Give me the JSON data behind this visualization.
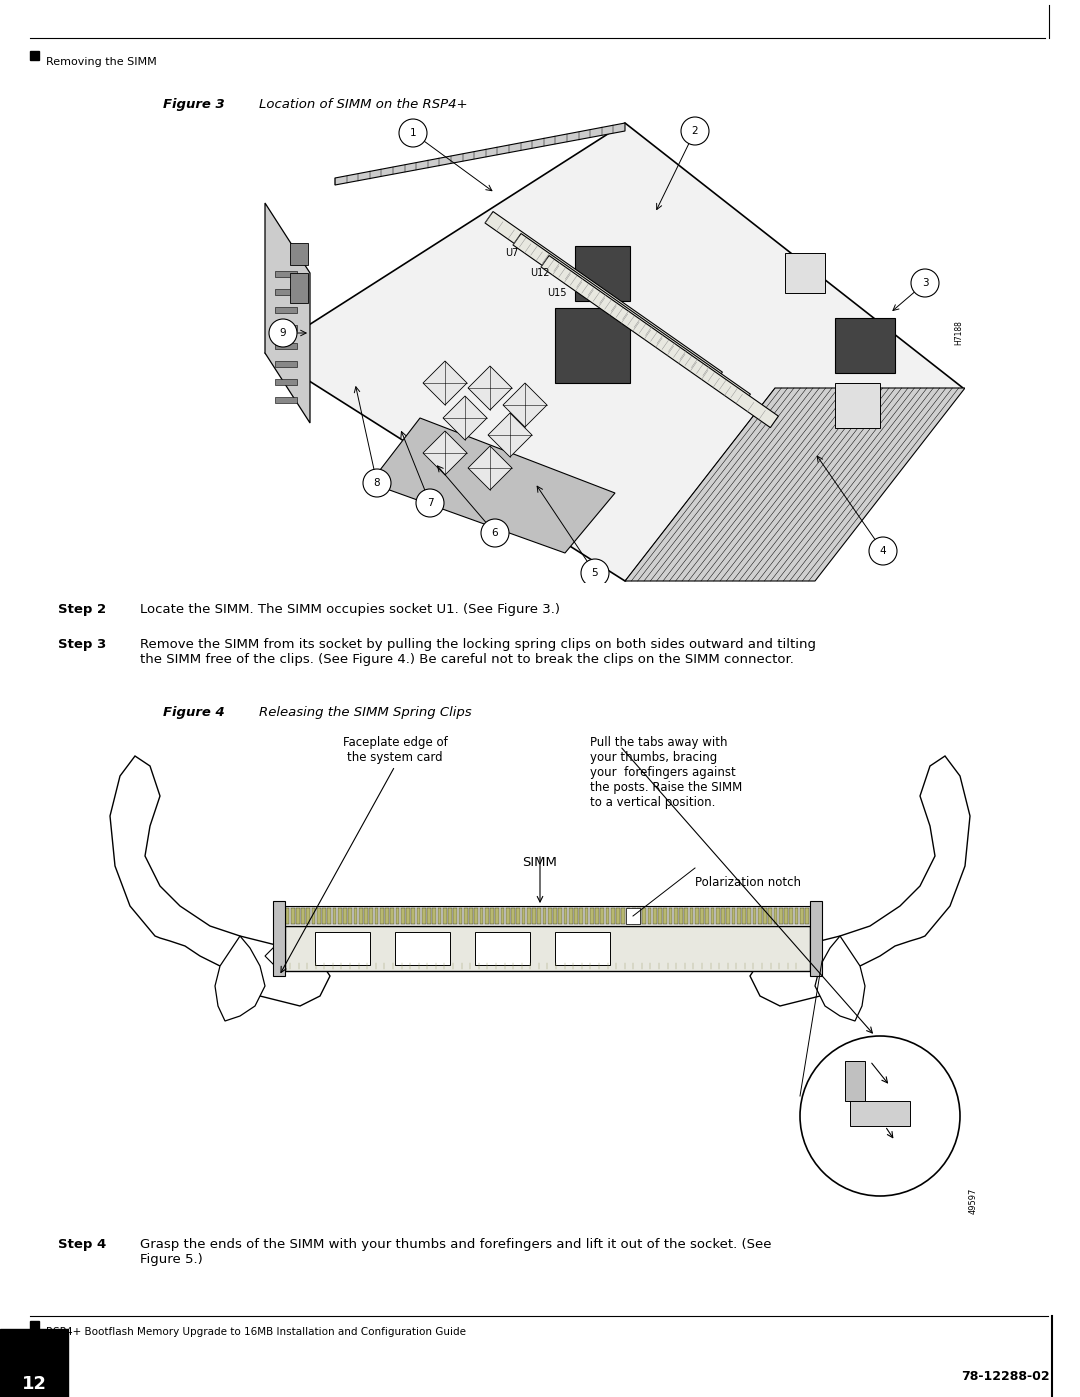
{
  "bg_color": "#ffffff",
  "header_text": "Removing the SIMM",
  "fig3_title": "Figure 3",
  "fig3_italic": "    Location of SIMM on the RSP4+",
  "fig4_title": "Figure 4",
  "fig4_italic": "    Releasing the SIMM Spring Clips",
  "step2_label": "Step 2",
  "step2_text": "Locate the SIMM. The SIMM occupies socket U1. (See Figure 3.)",
  "step3_label": "Step 3",
  "step3_text": "Remove the SIMM from its socket by pulling the locking spring clips on both sides outward and tilting\nthe SIMM free of the clips. (See Figure 4.) Be careful not to break the clips on the SIMM connector.",
  "step4_label": "Step 4",
  "step4_text": "Grasp the ends of the SIMM with your thumbs and forefingers and lift it out of the socket. (See\nFigure 5.)",
  "footer_left": "RSP4+ Bootflash Memory Upgrade to 16MB Installation and Configuration Guide",
  "footer_page": "12",
  "footer_right": "78-12288-02",
  "fig4_ann1": "Pull the tabs away with\nyour thumbs, bracing\nyour  forefingers against\nthe posts. Raise the SIMM\nto a vertical position.",
  "fig4_ann2": "Faceplate edge of\nthe system card",
  "fig4_ann3": "Polarization notch",
  "fig4_ann4": "SIMM",
  "fig4_id": "49597",
  "fig3_id": "H7188"
}
